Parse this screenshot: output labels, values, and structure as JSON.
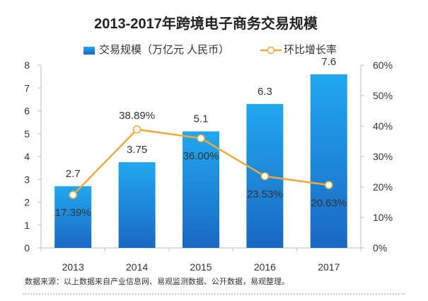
{
  "colors": {
    "bar_top": "#21a8ef",
    "bar_bottom": "#1a68c3",
    "line": "#f2a93b",
    "marker_fill": "#ffffff",
    "text": "#333333",
    "axis": "#bfbfbf"
  },
  "chart_data": {
    "type": "bar",
    "title": "2013-2017年跨境电子商务交易规模",
    "categories": [
      "2013",
      "2014",
      "2015",
      "2016",
      "2017"
    ],
    "series": [
      {
        "name": "交易规模（万亿元 人民币）",
        "type": "bar",
        "axis": "left",
        "values": [
          2.7,
          3.75,
          5.1,
          6.3,
          7.6
        ],
        "labels": [
          "2.7",
          "3.75",
          "5.1",
          "6.3",
          "7.6"
        ]
      },
      {
        "name": "环比增长率",
        "type": "line",
        "axis": "right",
        "values": [
          17.39,
          38.89,
          36.0,
          23.53,
          20.63
        ],
        "labels": [
          "17.39%",
          "38.89%",
          "36.00%",
          "23.53%",
          "20.63%"
        ]
      }
    ],
    "ylim_left": [
      0,
      8
    ],
    "ylim_right": [
      0,
      60
    ],
    "yticks_left": [
      "0",
      "1",
      "2",
      "3",
      "4",
      "5",
      "6",
      "7",
      "8"
    ],
    "yticks_right": [
      "0%",
      "10%",
      "20%",
      "30%",
      "40%",
      "50%",
      "60%"
    ],
    "grid": false,
    "legend_position": "top",
    "source": "数据来源：以上数据来自产业信息网、易观监测数据、公开数据，易观整理。"
  }
}
